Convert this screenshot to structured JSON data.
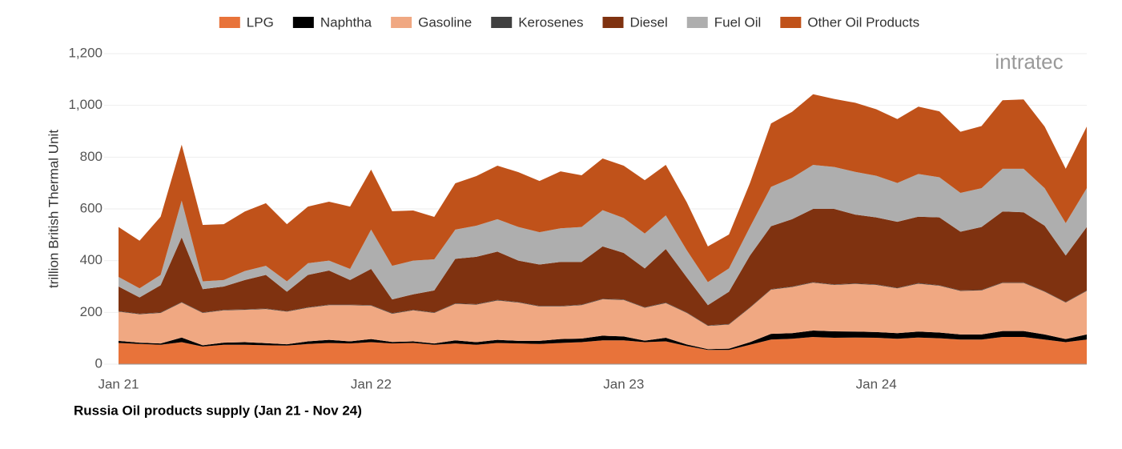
{
  "logo": "intratec",
  "chart_data": {
    "type": "stacked_area",
    "title": "Russia Oil products supply (Jan 21 - Nov 24)",
    "y_label": "trillion British Thermal Unit",
    "categories": [
      "Jan 21",
      null,
      null,
      null,
      null,
      null,
      null,
      null,
      null,
      null,
      null,
      null,
      "Jan 22",
      null,
      null,
      null,
      null,
      null,
      null,
      null,
      null,
      null,
      null,
      null,
      "Jan 23",
      null,
      null,
      null,
      null,
      null,
      null,
      null,
      null,
      null,
      null,
      null,
      "Jan 24",
      null,
      null,
      null,
      null,
      null,
      null,
      null,
      null,
      null,
      null
    ],
    "ylim": [
      0,
      1200
    ],
    "yticks": [
      0,
      200,
      400,
      600,
      800,
      {
        "value": 1000,
        "label": "1,000"
      },
      {
        "value": 1200,
        "label": "1,200"
      }
    ],
    "grid": true,
    "legend": "top",
    "series": [
      {
        "name": "LPG",
        "color": "#e8733a",
        "values": [
          82,
          78,
          75,
          85,
          68,
          75,
          75,
          73,
          72,
          78,
          82,
          80,
          85,
          80,
          82,
          75,
          80,
          75,
          82,
          80,
          78,
          82,
          85,
          92,
          92,
          85,
          88,
          70,
          55,
          55,
          75,
          95,
          98,
          105,
          102,
          103,
          102,
          98,
          103,
          100,
          95,
          95,
          105,
          105,
          95,
          85,
          95
        ]
      },
      {
        "name": "Naphtha",
        "color": "#000000",
        "values": [
          8,
          5,
          5,
          18,
          5,
          8,
          10,
          8,
          5,
          10,
          12,
          8,
          12,
          6,
          6,
          5,
          12,
          10,
          12,
          10,
          12,
          15,
          14,
          18,
          15,
          6,
          14,
          6,
          3,
          5,
          10,
          22,
          22,
          25,
          25,
          23,
          22,
          22,
          23,
          22,
          20,
          20,
          23,
          23,
          20,
          12,
          20
        ]
      },
      {
        "name": "Gasoline",
        "color": "#f0a882",
        "values": [
          113,
          110,
          118,
          135,
          125,
          125,
          125,
          132,
          126,
          130,
          134,
          140,
          129,
          109,
          120,
          118,
          141,
          145,
          152,
          148,
          133,
          126,
          129,
          141,
          141,
          127,
          134,
          122,
          90,
          93,
          133,
          171,
          178,
          185,
          179,
          184,
          182,
          173,
          185,
          181,
          168,
          170,
          186,
          186,
          165,
          141,
          168
        ]
      },
      {
        "name": "Kerosenes",
        "color": "#404040",
        "values": [
          2,
          2,
          2,
          2,
          2,
          2,
          2,
          2,
          2,
          2,
          2,
          2,
          2,
          2,
          2,
          2,
          2,
          2,
          2,
          2,
          2,
          2,
          2,
          2,
          2,
          2,
          2,
          2,
          2,
          2,
          2,
          2,
          2,
          2,
          2,
          2,
          2,
          2,
          2,
          2,
          2,
          2,
          2,
          2,
          2,
          2,
          2
        ]
      },
      {
        "name": "Diesel",
        "color": "#7f3210",
        "values": [
          95,
          63,
          105,
          250,
          90,
          90,
          113,
          130,
          75,
          125,
          132,
          95,
          140,
          53,
          60,
          85,
          172,
          183,
          187,
          160,
          160,
          170,
          165,
          202,
          180,
          150,
          207,
          135,
          78,
          125,
          200,
          243,
          260,
          283,
          292,
          266,
          259,
          255,
          257,
          262,
          227,
          243,
          274,
          271,
          253,
          180,
          245
        ]
      },
      {
        "name": "Fuel Oil",
        "color": "#aeaeae",
        "values": [
          37,
          35,
          40,
          142,
          30,
          25,
          35,
          35,
          40,
          45,
          38,
          43,
          152,
          130,
          130,
          120,
          113,
          120,
          125,
          130,
          125,
          130,
          135,
          140,
          135,
          135,
          130,
          105,
          89,
          90,
          110,
          152,
          160,
          170,
          162,
          165,
          161,
          150,
          165,
          155,
          150,
          150,
          165,
          168,
          145,
          125,
          150
        ]
      },
      {
        "name": "Other Oil Products",
        "color": "#c0521a",
        "values": [
          193,
          184,
          225,
          216,
          218,
          216,
          230,
          242,
          221,
          219,
          228,
          241,
          232,
          211,
          194,
          164,
          179,
          192,
          207,
          212,
          198,
          220,
          200,
          200,
          202,
          206,
          195,
          185,
          138,
          131,
          170,
          245,
          255,
          273,
          263,
          267,
          257,
          247,
          260,
          255,
          236,
          240,
          265,
          268,
          238,
          210,
          238
        ]
      }
    ]
  }
}
